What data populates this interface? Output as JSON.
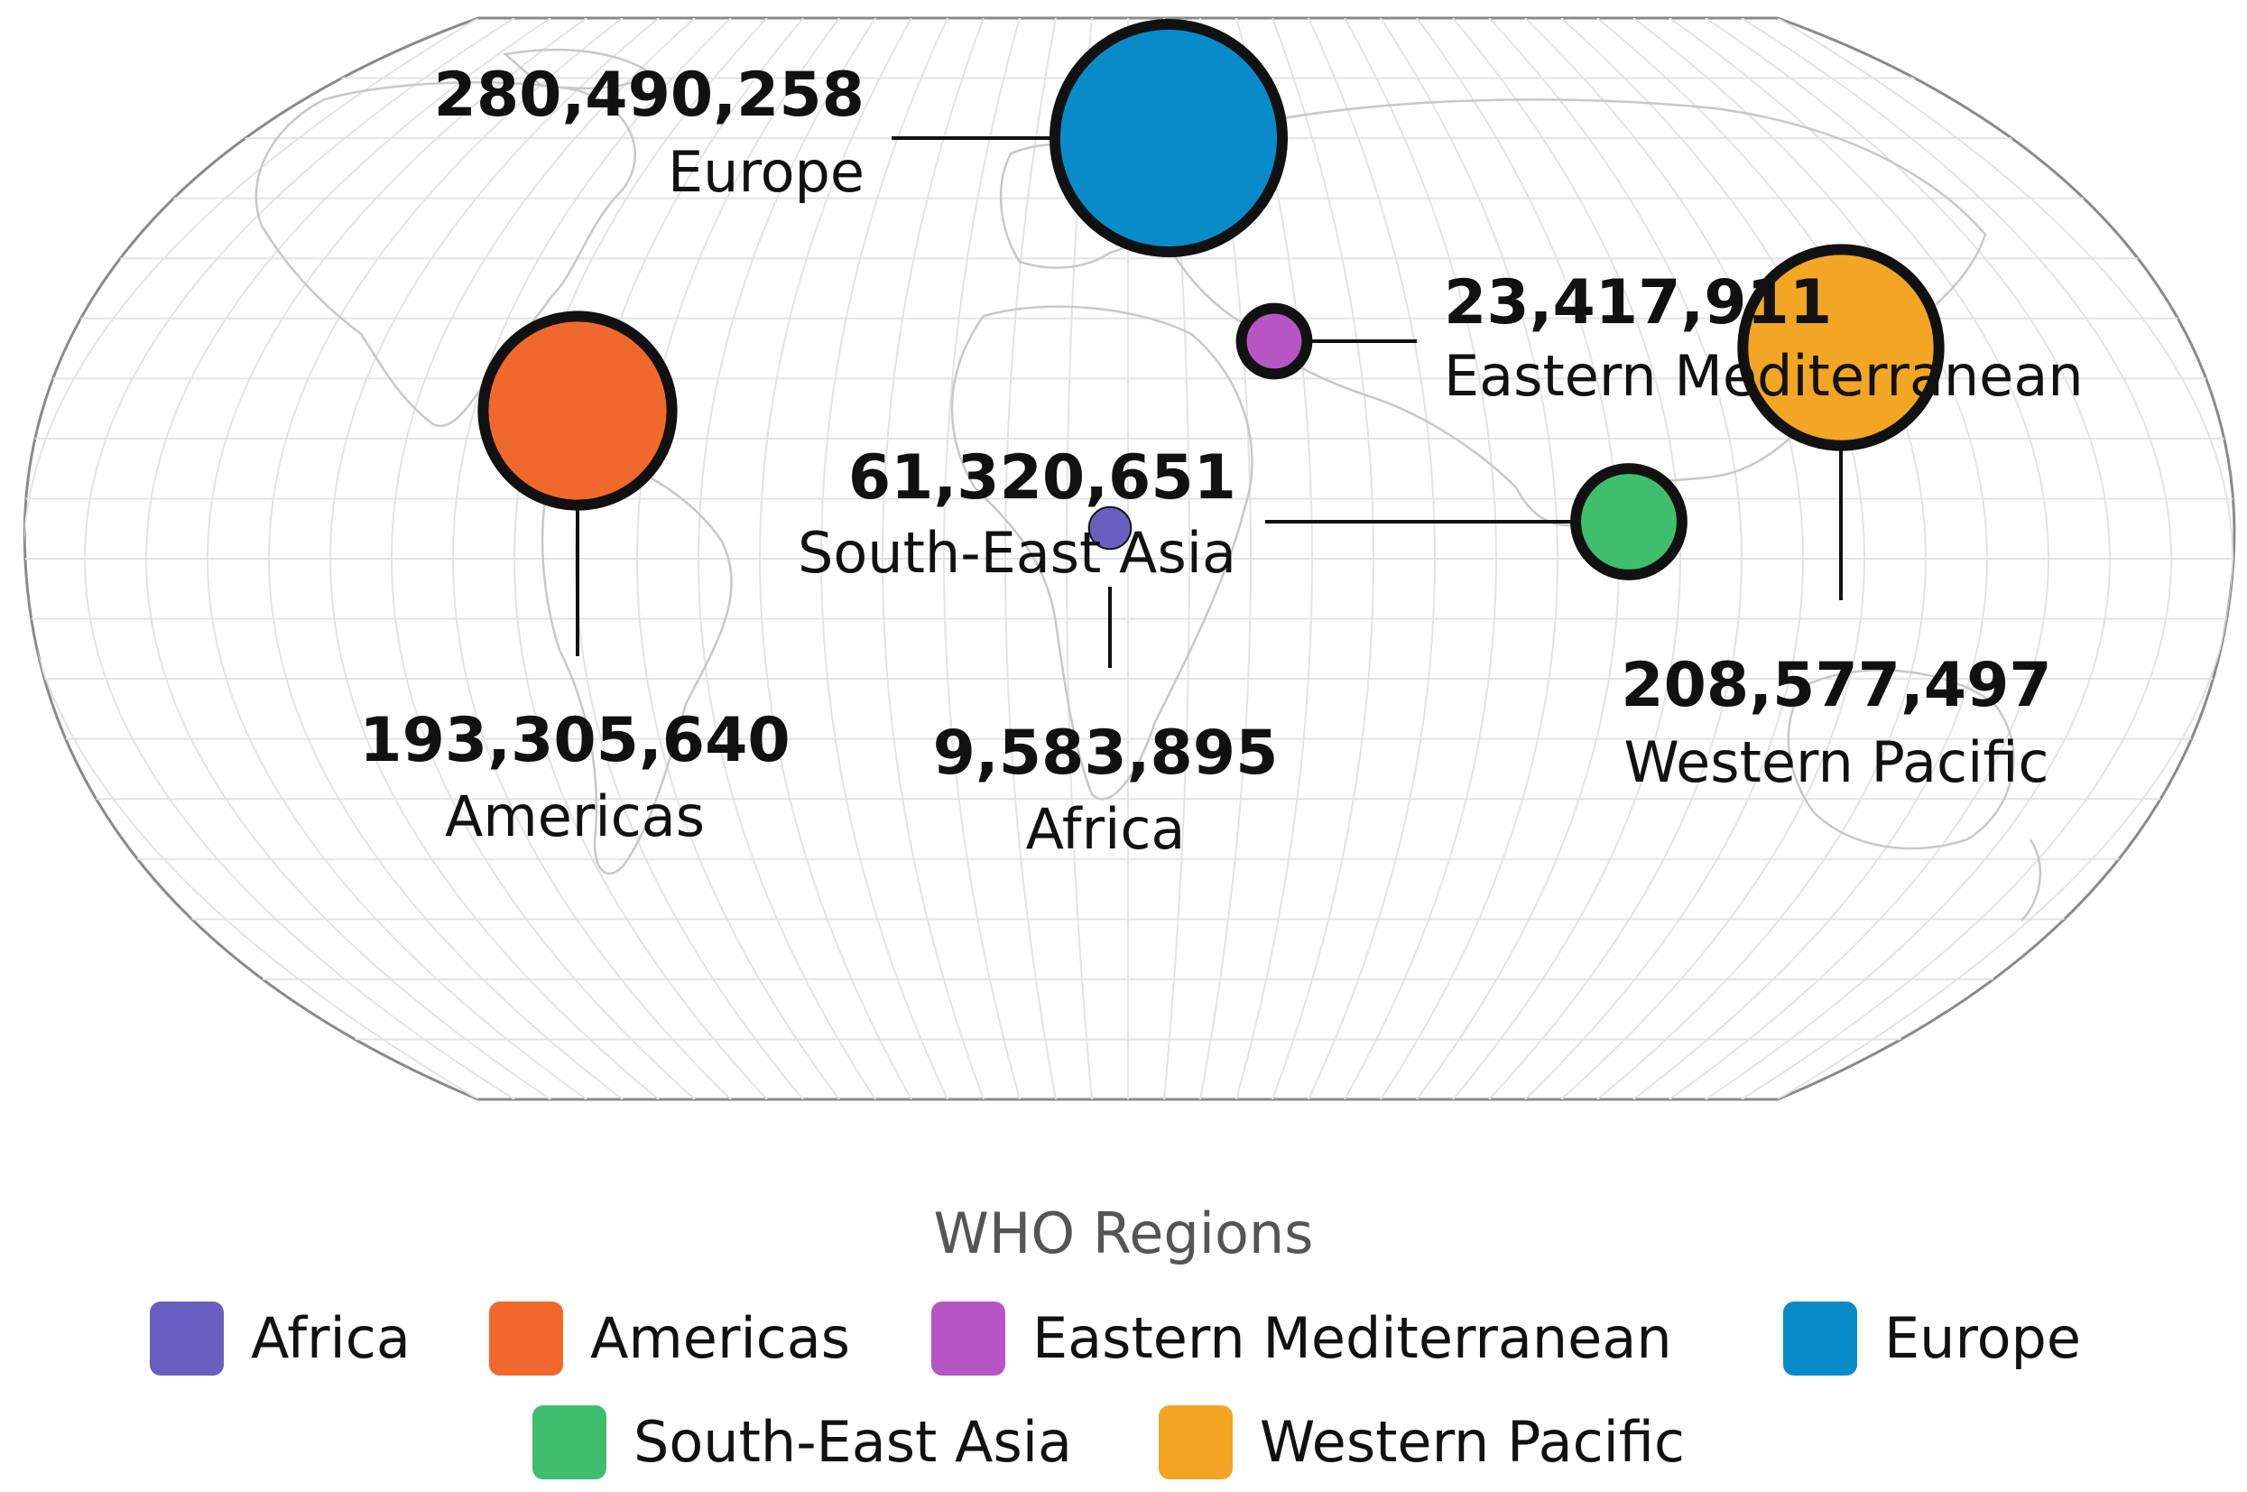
{
  "chart_data": {
    "type": "bubble-map",
    "title": "",
    "legend": {
      "title": "WHO Regions",
      "placement": "bottom-center",
      "items": [
        {
          "name": "Africa",
          "color": "#6a5fc1"
        },
        {
          "name": "Americas",
          "color": "#f0692c"
        },
        {
          "name": "Eastern Mediterranean",
          "color": "#b855c4"
        },
        {
          "name": "Europe",
          "color": "#0a8bc9"
        },
        {
          "name": "South-East Asia",
          "color": "#3fbe6e"
        },
        {
          "name": "Western Pacific",
          "color": "#f2a623"
        }
      ]
    },
    "series": [
      {
        "name": "Europe",
        "value_label": "280,490,258",
        "value": 280490258,
        "color": "#0a8bc9"
      },
      {
        "name": "Americas",
        "value_label": "193,305,640",
        "value": 193305640,
        "color": "#f0692c"
      },
      {
        "name": "Eastern Mediterranean",
        "value_label": "23,417,911",
        "value": 23417911,
        "color": "#b855c4"
      },
      {
        "name": "Western Pacific",
        "value_label": "208,577,497",
        "value": 208577497,
        "color": "#f2a623"
      },
      {
        "name": "South-East Asia",
        "value_label": "61,320,651",
        "value": 61320651,
        "color": "#3fbe6e"
      },
      {
        "name": "Africa",
        "value_label": "9,583,895",
        "value": 9583895,
        "color": "#6a5fc1"
      }
    ]
  }
}
